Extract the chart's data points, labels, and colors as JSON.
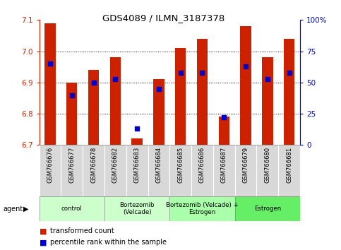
{
  "title": "GDS4089 / ILMN_3187378",
  "samples": [
    "GSM766676",
    "GSM766677",
    "GSM766678",
    "GSM766682",
    "GSM766683",
    "GSM766684",
    "GSM766685",
    "GSM766686",
    "GSM766687",
    "GSM766679",
    "GSM766680",
    "GSM766681"
  ],
  "bar_values": [
    7.09,
    6.9,
    6.94,
    6.98,
    6.72,
    6.91,
    7.01,
    7.04,
    6.79,
    7.08,
    6.98,
    7.04
  ],
  "pct_ranks": [
    65,
    40,
    50,
    53,
    13,
    45,
    58,
    58,
    22,
    63,
    53,
    58
  ],
  "ylim_left": [
    6.7,
    7.1
  ],
  "ylim_right": [
    0,
    100
  ],
  "yticks_left": [
    6.7,
    6.8,
    6.9,
    7.0,
    7.1
  ],
  "yticks_right": [
    0,
    25,
    50,
    75,
    100
  ],
  "ytick_labels_right": [
    "0",
    "25",
    "50",
    "75",
    "100%"
  ],
  "group_info": [
    {
      "label": "control",
      "start": 0,
      "end": 2,
      "color": "#ccffcc"
    },
    {
      "label": "Bortezomib\n(Velcade)",
      "start": 3,
      "end": 5,
      "color": "#ccffcc"
    },
    {
      "label": "Bortezomib (Velcade) +\nEstrogen",
      "start": 6,
      "end": 8,
      "color": "#aaffaa"
    },
    {
      "label": "Estrogen",
      "start": 9,
      "end": 11,
      "color": "#66ee66"
    }
  ],
  "bar_color": "#cc2200",
  "dot_color": "#0000cc",
  "bar_width": 0.5,
  "legend_red": "transformed count",
  "legend_blue": "percentile rank within the sample",
  "agent_label": "agent",
  "grid_lines": [
    6.8,
    6.9,
    7.0
  ]
}
